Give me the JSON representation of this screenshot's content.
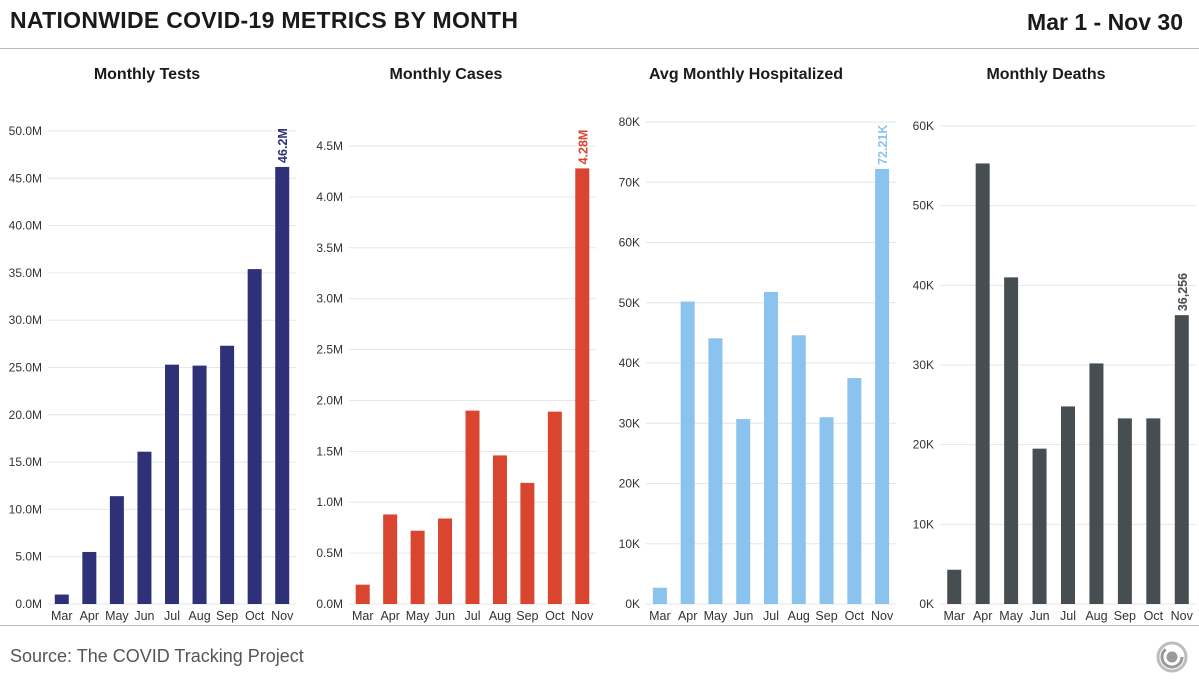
{
  "header": {
    "title": "NATIONWIDE COVID-19 METRICS BY MONTH",
    "date_range": "Mar 1 - Nov 30"
  },
  "footer": {
    "source": "Source: The COVID Tracking Project"
  },
  "colors": {
    "tests": "#2e3178",
    "cases": "#d9452e",
    "hospitalized": "#8ac4ee",
    "deaths": "#474e51",
    "grid": "#e6e6e6",
    "text": "#222222"
  },
  "chart_data": [
    {
      "type": "bar",
      "key": "tests",
      "title": "Monthly Tests",
      "categories": [
        "Mar",
        "Apr",
        "May",
        "Jun",
        "Jul",
        "Aug",
        "Sep",
        "Oct",
        "Nov"
      ],
      "values": [
        1000000,
        5500000,
        11400000,
        16100000,
        25300000,
        25200000,
        27300000,
        35400000,
        46200000
      ],
      "ylim": [
        0,
        50000000
      ],
      "yticks": [
        0,
        5000000,
        10000000,
        15000000,
        20000000,
        25000000,
        30000000,
        35000000,
        40000000,
        45000000,
        50000000
      ],
      "ytick_labels": [
        "0.0M",
        "5.0M",
        "10.0M",
        "15.0M",
        "20.0M",
        "25.0M",
        "30.0M",
        "35.0M",
        "40.0M",
        "45.0M",
        "50.0M"
      ],
      "annotation": {
        "index": 8,
        "label": "46.2M"
      },
      "color": "#2e3178"
    },
    {
      "type": "bar",
      "key": "cases",
      "title": "Monthly Cases",
      "categories": [
        "Mar",
        "Apr",
        "May",
        "Jun",
        "Jul",
        "Aug",
        "Sep",
        "Oct",
        "Nov"
      ],
      "values": [
        190000,
        880000,
        720000,
        840000,
        1900000,
        1460000,
        1190000,
        1890000,
        4280000
      ],
      "ylim": [
        0,
        4500000
      ],
      "yticks": [
        0,
        500000,
        1000000,
        1500000,
        2000000,
        2500000,
        3000000,
        3500000,
        4000000,
        4500000
      ],
      "ytick_labels": [
        "0.0M",
        "0.5M",
        "1.0M",
        "1.5M",
        "2.0M",
        "2.5M",
        "3.0M",
        "3.5M",
        "4.0M",
        "4.5M"
      ],
      "annotation": {
        "index": 8,
        "label": "4.28M"
      },
      "color": "#d9452e"
    },
    {
      "type": "bar",
      "key": "hospitalized",
      "title": "Avg Monthly Hospitalized",
      "categories": [
        "Mar",
        "Apr",
        "May",
        "Jun",
        "Jul",
        "Aug",
        "Sep",
        "Oct",
        "Nov"
      ],
      "values": [
        2700,
        50200,
        44100,
        30700,
        51800,
        44600,
        31000,
        37500,
        72210
      ],
      "ylim": [
        0,
        80000
      ],
      "yticks": [
        0,
        10000,
        20000,
        30000,
        40000,
        50000,
        60000,
        70000,
        80000
      ],
      "ytick_labels": [
        "0K",
        "10K",
        "20K",
        "30K",
        "40K",
        "50K",
        "60K",
        "70K",
        "80K"
      ],
      "annotation": {
        "index": 8,
        "label": "72.21K"
      },
      "color": "#8ac4ee"
    },
    {
      "type": "bar",
      "key": "deaths",
      "title": "Monthly Deaths",
      "categories": [
        "Mar",
        "Apr",
        "May",
        "Jun",
        "Jul",
        "Aug",
        "Sep",
        "Oct",
        "Nov"
      ],
      "values": [
        4300,
        55300,
        41000,
        19500,
        24800,
        30200,
        23300,
        23300,
        36256
      ],
      "ylim": [
        0,
        60000
      ],
      "yticks": [
        0,
        10000,
        20000,
        30000,
        40000,
        50000,
        60000
      ],
      "ytick_labels": [
        "0K",
        "10K",
        "20K",
        "30K",
        "40K",
        "50K",
        "60K"
      ],
      "annotation": {
        "index": 8,
        "label": "36,256"
      },
      "color": "#474e51"
    }
  ]
}
